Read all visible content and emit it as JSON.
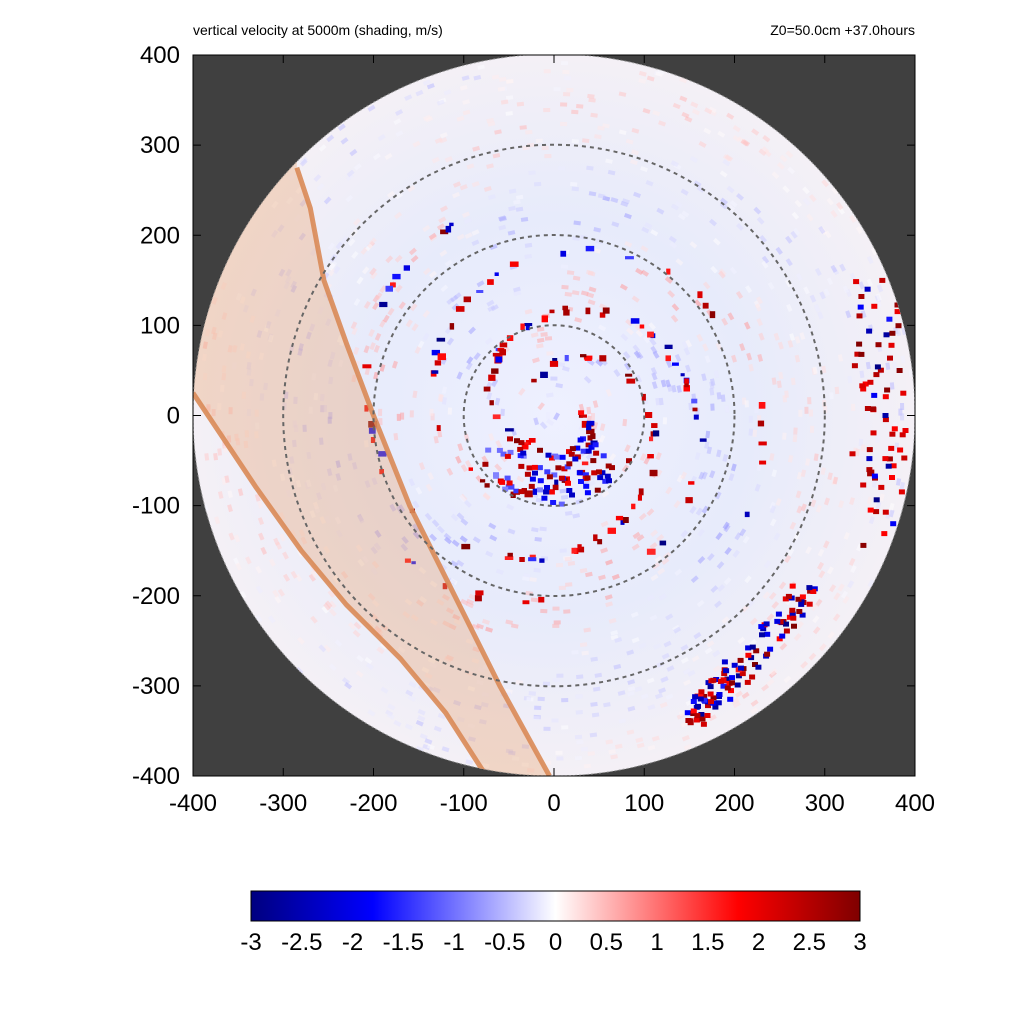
{
  "header": {
    "left": "vertical velocity at 5000m (shading, m/s)",
    "right": "Z0=50.0cm  +37.0hours"
  },
  "chart_data": {
    "type": "heatmap",
    "title": "vertical velocity at 5000m (shading, m/s)",
    "xlim": [
      -400,
      400
    ],
    "ylim": [
      -400,
      400
    ],
    "x_ticks": [
      -400,
      -300,
      -200,
      -100,
      0,
      100,
      200,
      300,
      400
    ],
    "y_ticks": [
      400,
      300,
      200,
      100,
      0,
      -100,
      -200,
      -300,
      -400
    ],
    "domain_radius": 400,
    "range_rings": [
      100,
      200,
      300
    ],
    "colorbar": {
      "min": -3,
      "max": 3,
      "ticks": [
        "-3",
        "-2.5",
        "-2",
        "-1.5",
        "-1",
        "-0.5",
        "0",
        "0.5",
        "1",
        "1.5",
        "2",
        "2.5",
        "3"
      ],
      "colors": [
        "#00007f",
        "#0000ff",
        "#ffffff",
        "#ff0000",
        "#7f0000"
      ]
    },
    "colors": {
      "outside_domain": "#404040",
      "band_fill": "#e9a878",
      "band_edge": "#d98a56",
      "ring": "#666666"
    },
    "band": {
      "edge1": [
        [
          -285,
          275
        ],
        [
          -270,
          230
        ],
        [
          -255,
          150
        ],
        [
          -230,
          80
        ],
        [
          -200,
          0
        ],
        [
          -160,
          -100
        ],
        [
          -110,
          -200
        ],
        [
          -60,
          -300
        ],
        [
          -5,
          -400
        ]
      ],
      "edge2": [
        [
          -400,
          25
        ],
        [
          -370,
          -20
        ],
        [
          -330,
          -80
        ],
        [
          -280,
          -150
        ],
        [
          -230,
          -210
        ],
        [
          -170,
          -270
        ],
        [
          -120,
          -330
        ],
        [
          -75,
          -400
        ]
      ]
    }
  }
}
